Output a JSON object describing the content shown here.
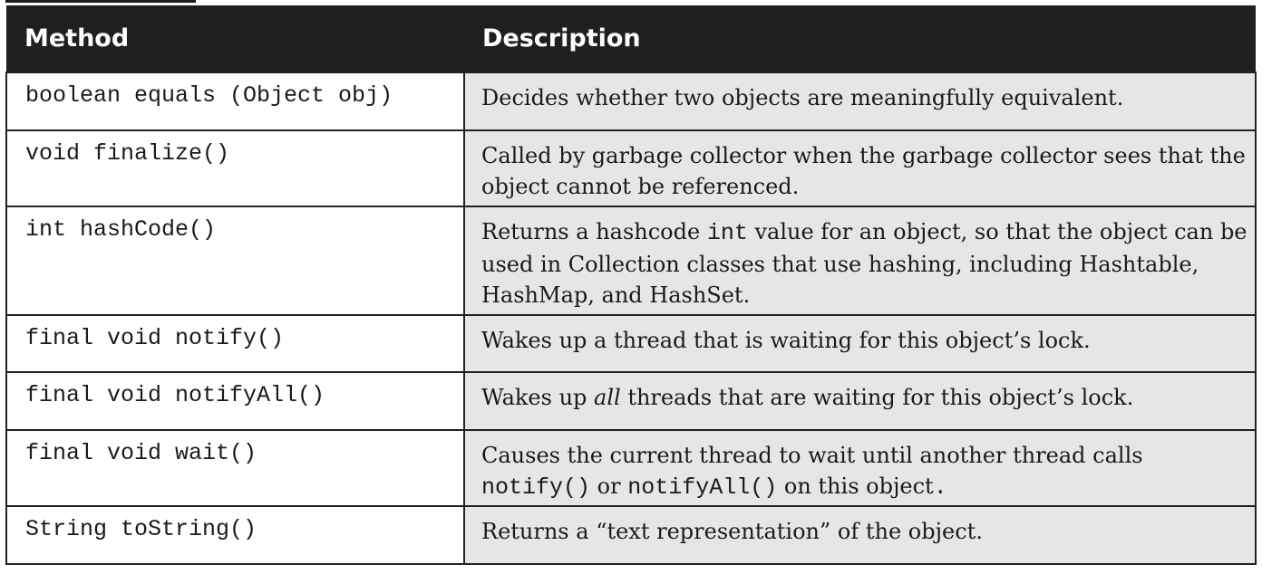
{
  "table": {
    "headers": {
      "method": "Method",
      "description": "Description"
    },
    "rows": [
      {
        "method": "boolean equals (Object obj)",
        "description": "Decides whether two objects are meaningfully equivalent."
      },
      {
        "method": "void finalize()",
        "description": "Called by garbage collector when the garbage collector sees that the object cannot be referenced."
      },
      {
        "method": "int hashCode()",
        "description_parts": {
          "a": "Returns a hashcode ",
          "code": "int",
          "b": " value for an object, so that the object can be used in Collection classes that use hashing, including Hashtable, HashMap, and HashSet."
        }
      },
      {
        "method": "final void notify()",
        "description": "Wakes up a thread that is waiting for this object’s lock."
      },
      {
        "method": "final void notifyAll()",
        "description_parts": {
          "a": "Wakes up ",
          "em": "all",
          "b": " threads that are waiting for this object’s lock."
        }
      },
      {
        "method": "final void wait()",
        "description_parts": {
          "a": "Causes the current thread to wait until another thread calls ",
          "code1": "notify()",
          "b": " or ",
          "code2": "notifyAll()",
          "c": " on this object",
          "code3": "."
        }
      },
      {
        "method": "String toString()",
        "description": "Returns a “text representation” of the object."
      }
    ]
  }
}
